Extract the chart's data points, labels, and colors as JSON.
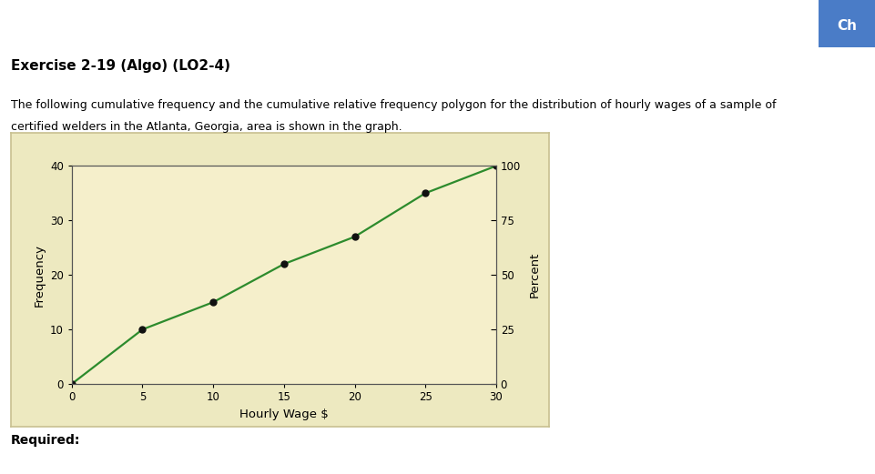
{
  "header_title": "Exercise 2-19 (Algo) (LO2-4)",
  "description_line1": "The following cumulative frequency and the cumulative relative frequency polygon for the distribution of hourly wages of a sample of",
  "description_line2": "certified welders in the Atlanta, Georgia, area is shown in the graph.",
  "x_data": [
    0,
    5,
    10,
    15,
    20,
    25,
    30
  ],
  "y_freq": [
    0,
    10,
    15,
    22,
    27,
    35,
    40
  ],
  "line_color": "#2d8b2d",
  "marker_color": "#111111",
  "xlabel": "Hourly Wage $",
  "ylabel_left": "Frequency",
  "ylabel_right": "Percent",
  "xlim": [
    0,
    30
  ],
  "ylim_left": [
    0,
    40
  ],
  "ylim_right": [
    0,
    100
  ],
  "xticks": [
    0,
    5,
    10,
    15,
    20,
    25,
    30
  ],
  "yticks_left": [
    0,
    10,
    20,
    30,
    40
  ],
  "yticks_right": [
    0,
    25,
    50,
    75,
    100
  ],
  "chart_bg_color": "#f5efcb",
  "outer_bg_color": "#ede9c0",
  "page_bg": "#ffffff",
  "required_label": "Required:",
  "ch_button_color": "#4a7cc7",
  "ch_button_text": "Ch",
  "border_color": "#c8c090"
}
